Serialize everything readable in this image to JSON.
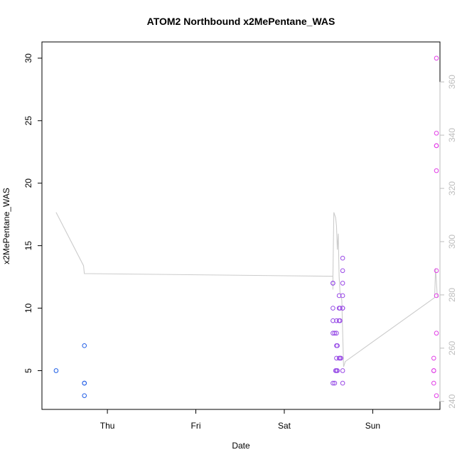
{
  "chart_data": {
    "type": "scatter",
    "title": "ATOM2 Northbound x2MePentane_WAS",
    "xlabel": "Date",
    "ylabel": "x2MePentane_WAS",
    "x_tick_labels": [
      "Thu",
      "Fri",
      "Sat",
      "Sun"
    ],
    "x_tick_positions_days": [
      1,
      2,
      3,
      4
    ],
    "xlim_days": [
      0.26,
      4.76
    ],
    "ylim": [
      1.9,
      31.3
    ],
    "y_ticks": [
      5,
      10,
      15,
      20,
      25,
      30
    ],
    "y_right_lim": [
      237,
      375
    ],
    "y_right_ticks": [
      240,
      260,
      280,
      300,
      320,
      340,
      360
    ],
    "grid": false,
    "colors": {
      "scatter_start": "#1f5fe6",
      "scatter_end": "#e23ee6",
      "line": "#cccccc",
      "right_axis": "#bdbdbd",
      "frame": "#000000"
    },
    "series": [
      {
        "type": "scatter",
        "points": [
          {
            "x": 0.42,
            "y": 5
          },
          {
            "x": 0.74,
            "y": 7
          },
          {
            "x": 0.74,
            "y": 4
          },
          {
            "x": 0.74,
            "y": 4
          },
          {
            "x": 0.74,
            "y": 3
          },
          {
            "x": 3.55,
            "y": 12
          },
          {
            "x": 3.55,
            "y": 12
          },
          {
            "x": 3.55,
            "y": 10
          },
          {
            "x": 3.55,
            "y": 9
          },
          {
            "x": 3.55,
            "y": 8
          },
          {
            "x": 3.55,
            "y": 4
          },
          {
            "x": 3.57,
            "y": 8
          },
          {
            "x": 3.57,
            "y": 4
          },
          {
            "x": 3.58,
            "y": 5
          },
          {
            "x": 3.59,
            "y": 9
          },
          {
            "x": 3.59,
            "y": 8
          },
          {
            "x": 3.59,
            "y": 7
          },
          {
            "x": 3.59,
            "y": 6
          },
          {
            "x": 3.59,
            "y": 5
          },
          {
            "x": 3.6,
            "y": 7
          },
          {
            "x": 3.6,
            "y": 5
          },
          {
            "x": 3.62,
            "y": 11
          },
          {
            "x": 3.62,
            "y": 10
          },
          {
            "x": 3.62,
            "y": 9
          },
          {
            "x": 3.62,
            "y": 6
          },
          {
            "x": 3.63,
            "y": 10
          },
          {
            "x": 3.63,
            "y": 9
          },
          {
            "x": 3.63,
            "y": 6
          },
          {
            "x": 3.64,
            "y": 6
          },
          {
            "x": 3.66,
            "y": 14
          },
          {
            "x": 3.66,
            "y": 13
          },
          {
            "x": 3.66,
            "y": 12
          },
          {
            "x": 3.66,
            "y": 11
          },
          {
            "x": 3.66,
            "y": 10
          },
          {
            "x": 3.66,
            "y": 10
          },
          {
            "x": 3.66,
            "y": 5
          },
          {
            "x": 3.66,
            "y": 4
          },
          {
            "x": 4.69,
            "y": 6
          },
          {
            "x": 4.69,
            "y": 5
          },
          {
            "x": 4.69,
            "y": 5
          },
          {
            "x": 4.69,
            "y": 4
          },
          {
            "x": 4.72,
            "y": 30
          },
          {
            "x": 4.72,
            "y": 24
          },
          {
            "x": 4.72,
            "y": 23
          },
          {
            "x": 4.72,
            "y": 23
          },
          {
            "x": 4.72,
            "y": 21
          },
          {
            "x": 4.72,
            "y": 13
          },
          {
            "x": 4.72,
            "y": 11
          },
          {
            "x": 4.72,
            "y": 8
          },
          {
            "x": 4.72,
            "y": 3
          }
        ]
      },
      {
        "type": "line",
        "axis": "right",
        "points": [
          {
            "x": 0.42,
            "y": 311
          },
          {
            "x": 0.73,
            "y": 291
          },
          {
            "x": 0.74,
            "y": 288
          },
          {
            "x": 3.55,
            "y": 287
          },
          {
            "x": 3.55,
            "y": 282
          },
          {
            "x": 3.55,
            "y": 287
          },
          {
            "x": 3.56,
            "y": 311
          },
          {
            "x": 3.58,
            "y": 309
          },
          {
            "x": 3.59,
            "y": 306
          },
          {
            "x": 3.6,
            "y": 297
          },
          {
            "x": 3.61,
            "y": 303
          },
          {
            "x": 3.62,
            "y": 287
          },
          {
            "x": 3.63,
            "y": 281
          },
          {
            "x": 3.65,
            "y": 278
          },
          {
            "x": 3.67,
            "y": 253
          },
          {
            "x": 3.69,
            "y": 255
          },
          {
            "x": 4.7,
            "y": 279
          },
          {
            "x": 4.71,
            "y": 290
          },
          {
            "x": 4.72,
            "y": 285
          },
          {
            "x": 4.73,
            "y": 279
          }
        ]
      }
    ]
  }
}
